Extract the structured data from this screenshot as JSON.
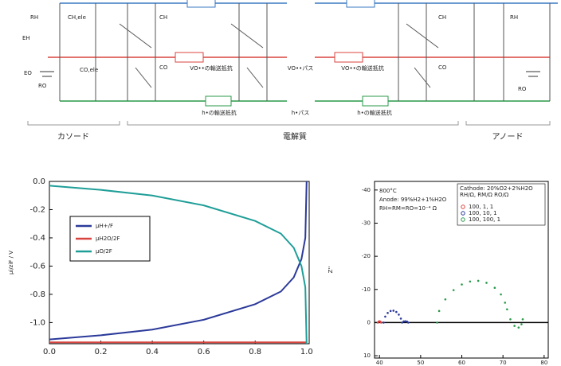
{
  "diagram": {
    "regions": [
      "カソード",
      "電解質",
      "アノード"
    ],
    "paths": [
      "VO••パス",
      "h•パス"
    ],
    "resistors": [
      "VO••の輸送抵抗",
      "h•の輸送抵抗"
    ],
    "labels": [
      "RH",
      "RO",
      "EH",
      "EO",
      "CH,ele",
      "CO,ele",
      "CH",
      "CO"
    ]
  },
  "chart_data": [
    {
      "type": "line",
      "ylabel": "μi/ziF / V",
      "x": [
        0,
        0.2,
        0.4,
        0.6,
        0.8,
        0.9,
        0.95,
        0.98,
        0.995,
        1
      ],
      "series": [
        {
          "name": "μH+/F",
          "color": "#2b3a9a",
          "values": [
            -1.12,
            -1.09,
            -1.05,
            -0.98,
            -0.87,
            -0.78,
            -0.68,
            -0.55,
            -0.4,
            0.0
          ]
        },
        {
          "name": "μH2O/2F",
          "color": "#d9433f",
          "values": [
            -1.14,
            -1.14,
            -1.14,
            -1.14,
            -1.14,
            -1.14,
            -1.14,
            -1.14,
            -1.14,
            -1.14
          ]
        },
        {
          "name": "μO/2F",
          "color": "#1f9e98",
          "values": [
            -0.03,
            -0.06,
            -0.1,
            -0.17,
            -0.28,
            -0.37,
            -0.47,
            -0.6,
            -0.75,
            -1.15
          ]
        }
      ],
      "xlim": [
        0,
        1.01
      ],
      "ylim": [
        -1.15,
        0.0
      ],
      "xticks": [
        {
          "value": 0,
          "label": "0.0"
        },
        0.2,
        0.4,
        0.6,
        0.8,
        {
          "value": 1,
          "label": "1.0"
        }
      ],
      "yticks": [
        {
          "value": 0,
          "label": "0.0"
        },
        -0.2,
        -0.4,
        -0.6,
        -0.8,
        {
          "value": -1,
          "label": "-1.0"
        }
      ]
    },
    {
      "type": "scatter",
      "ylabel": "Z''",
      "annotations": [
        "800°C",
        "Anode: 99%H2+1%H2O",
        "RH=RM=RO=10⁻⁴ Ω"
      ],
      "legend_title": [
        "Cathode: 20%O2+2%H2O",
        "RH/Ω, RM/Ω RO/Ω"
      ],
      "series": [
        {
          "name": "100, 1, 1",
          "color": "#d9433f",
          "x": [
            39.6,
            39.8,
            40,
            40.2,
            40.4
          ],
          "values": [
            0,
            -0.3,
            -0.4,
            -0.3,
            0
          ]
        },
        {
          "name": "100, 10, 1",
          "color": "#2b3a9a",
          "x": [
            41,
            41.4,
            42,
            42.7,
            43.4,
            44.1,
            44.7,
            45.2,
            45.5,
            45.9,
            46.3,
            46.7,
            47
          ],
          "values": [
            0,
            -1.8,
            -2.9,
            -3.5,
            -3.6,
            -3.2,
            -2.4,
            -1.2,
            0,
            -0.35,
            -0.4,
            -0.3,
            0
          ]
        },
        {
          "name": "100, 100, 1",
          "color": "#2a9a4a",
          "x": [
            54,
            54.5,
            56,
            58,
            60,
            62,
            64,
            66,
            68,
            69.5,
            70.5,
            71,
            71.8,
            72.8,
            73.8,
            74.5,
            74.8
          ],
          "values": [
            0,
            -3.5,
            -7,
            -9.8,
            -11.5,
            -12.4,
            -12.6,
            -12,
            -10.5,
            -8.5,
            -6,
            -4,
            -1,
            1,
            1.5,
            0.5,
            -1
          ]
        }
      ],
      "xlim": [
        38.8,
        81
      ],
      "ylim": [
        10.7,
        -42.6
      ],
      "xticks": [
        40,
        50,
        60,
        70,
        80
      ],
      "yticks": [
        -40,
        -30,
        -20,
        -10,
        0,
        10
      ]
    }
  ]
}
